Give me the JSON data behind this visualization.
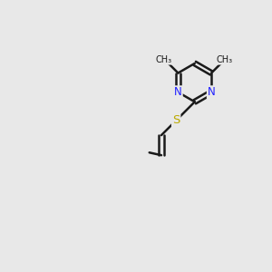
{
  "bg_color": "#e8e8e8",
  "bond_color": "#1a1a1a",
  "bond_width": 1.8,
  "atom_colors": {
    "C": "#1a1a1a",
    "N": "#2020ff",
    "O": "#dd0000",
    "S": "#bbaa00",
    "H": "#444444"
  },
  "font_size": 8.5,
  "fig_bg": "#e8e8e8"
}
